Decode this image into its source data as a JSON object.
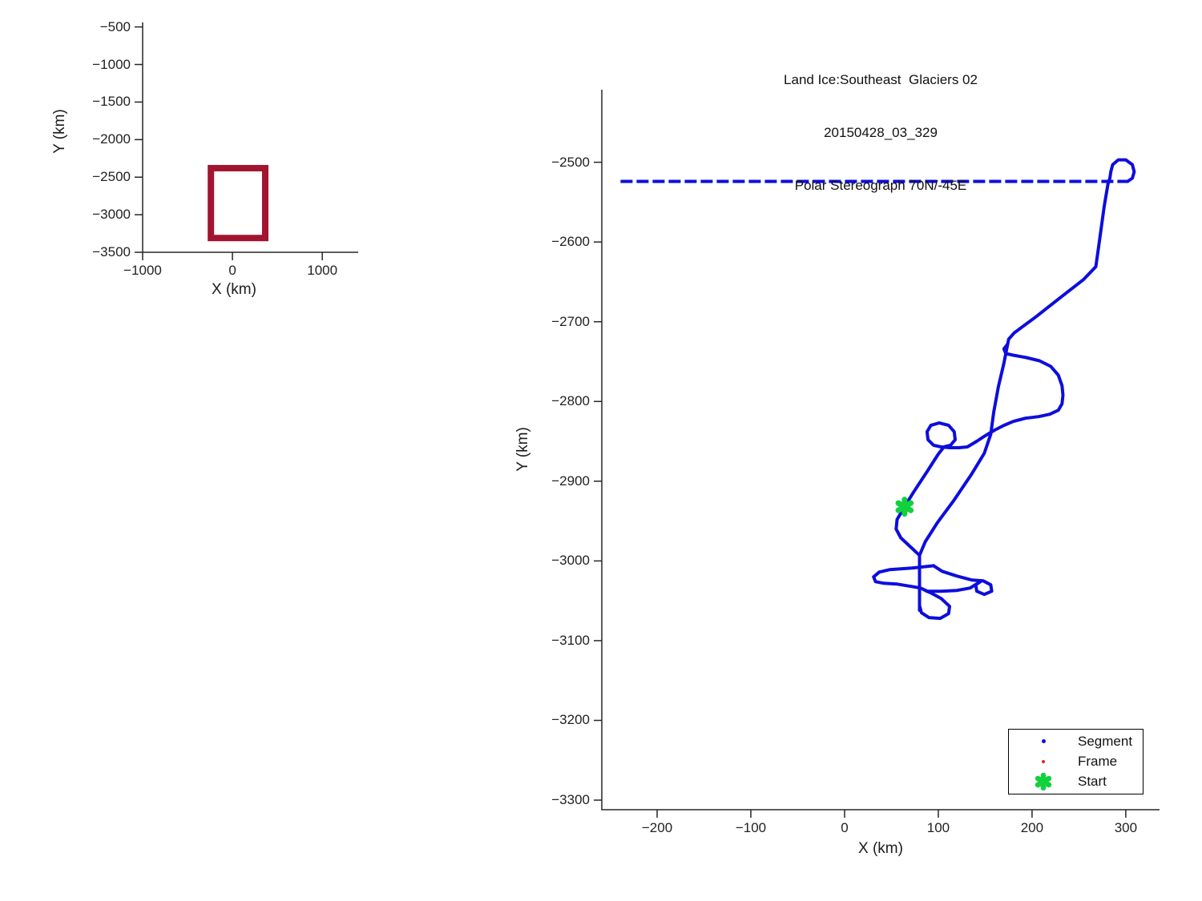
{
  "figure": {
    "background": "#ffffff"
  },
  "chart_data": [
    {
      "id": "overview",
      "type": "line",
      "description": "overview map with flight bounding box outline",
      "xlabel": "X (km)",
      "ylabel": "Y (km)",
      "x_ticks": [
        -1000,
        0,
        1000
      ],
      "y_ticks": [
        -500,
        -1000,
        -1500,
        -2000,
        -2500,
        -3000,
        -3500
      ],
      "xlim": [
        -1000,
        1400
      ],
      "ylim": [
        -3500,
        -440
      ],
      "grid": false,
      "rect": {
        "x_range": [
          -240,
          365
        ],
        "y_range": [
          -3310,
          -2380
        ],
        "color": "#A2142F",
        "line_width": 8
      }
    },
    {
      "id": "flight-track",
      "type": "line",
      "title_lines": [
        "Land Ice:Southeast  Glaciers 02",
        "20150428_03_329",
        "Polar Stereograph 70N/-45E"
      ],
      "xlabel": "X (km)",
      "ylabel": "Y (km)",
      "x_ticks": [
        -200,
        -100,
        0,
        100,
        200,
        300
      ],
      "y_ticks": [
        -2500,
        -2600,
        -2700,
        -2800,
        -2900,
        -3000,
        -3100,
        -3200,
        -3300
      ],
      "xlim": [
        -259,
        336
      ],
      "ylim": [
        -3312,
        -2409
      ],
      "grid": false,
      "path_color": "#0D0DDE",
      "line_width": 4,
      "dash_segments": [
        [
          [
            -239,
            -2524
          ],
          [
            302,
            -2524
          ]
        ]
      ],
      "solid_segments": [
        [
          [
            302,
            -2524
          ],
          [
            307,
            -2520
          ],
          [
            309,
            -2512
          ],
          [
            307,
            -2503
          ],
          [
            300,
            -2497
          ],
          [
            292,
            -2497
          ],
          [
            286,
            -2503
          ],
          [
            284,
            -2512
          ],
          [
            283,
            -2520
          ],
          [
            281,
            -2527
          ],
          [
            277,
            -2555
          ],
          [
            271,
            -2606
          ],
          [
            268,
            -2631
          ],
          [
            255,
            -2647
          ],
          [
            232,
            -2668
          ],
          [
            204,
            -2694
          ],
          [
            181,
            -2714
          ],
          [
            175,
            -2722
          ],
          [
            174,
            -2728
          ],
          [
            170,
            -2752
          ],
          [
            164,
            -2782
          ],
          [
            159,
            -2814
          ],
          [
            156,
            -2841
          ],
          [
            149,
            -2865
          ],
          [
            135,
            -2892
          ],
          [
            116,
            -2925
          ],
          [
            99,
            -2952
          ],
          [
            86,
            -2976
          ],
          [
            80,
            -2993
          ],
          [
            80,
            -3062
          ]
        ],
        [
          [
            80,
            -3056
          ],
          [
            82,
            -3065
          ],
          [
            90,
            -3071
          ],
          [
            102,
            -3072
          ],
          [
            111,
            -3066
          ],
          [
            112,
            -3057
          ],
          [
            103,
            -3047
          ],
          [
            92,
            -3040
          ],
          [
            86,
            -3037
          ]
        ],
        [
          [
            95,
            -3006
          ],
          [
            104,
            -3013
          ],
          [
            120,
            -3019
          ],
          [
            136,
            -3024
          ],
          [
            148,
            -3025
          ],
          [
            156,
            -3030
          ],
          [
            157,
            -3038
          ],
          [
            149,
            -3042
          ],
          [
            141,
            -3038
          ],
          [
            140,
            -3030
          ],
          [
            146,
            -3025
          ],
          [
            134,
            -3034
          ],
          [
            120,
            -3037
          ],
          [
            103,
            -3038
          ],
          [
            88,
            -3038
          ]
        ],
        [
          [
            95,
            -3006
          ],
          [
            72,
            -3009
          ],
          [
            48,
            -3011
          ],
          [
            37,
            -3014
          ],
          [
            31,
            -3020
          ],
          [
            33,
            -3026
          ],
          [
            42,
            -3028
          ],
          [
            56,
            -3029
          ],
          [
            71,
            -3032
          ],
          [
            81,
            -3034
          ],
          [
            90,
            -3039
          ]
        ],
        [
          [
            80,
            -2993
          ],
          [
            60,
            -2971
          ],
          [
            55,
            -2960
          ],
          [
            56,
            -2948
          ],
          [
            64,
            -2932
          ],
          [
            74,
            -2913
          ],
          [
            88,
            -2888
          ],
          [
            100,
            -2866
          ],
          [
            106,
            -2857
          ],
          [
            113,
            -2855
          ],
          [
            118,
            -2848
          ],
          [
            117,
            -2838
          ],
          [
            111,
            -2830
          ],
          [
            101,
            -2827
          ],
          [
            92,
            -2830
          ],
          [
            88,
            -2838
          ],
          [
            89,
            -2848
          ],
          [
            95,
            -2855
          ],
          [
            103,
            -2857
          ],
          [
            112,
            -2858
          ],
          [
            122,
            -2858
          ],
          [
            131,
            -2857
          ],
          [
            141,
            -2850
          ],
          [
            150,
            -2843
          ],
          [
            160,
            -2836
          ],
          [
            170,
            -2830
          ],
          [
            180,
            -2825
          ],
          [
            193,
            -2821
          ],
          [
            207,
            -2819
          ],
          [
            219,
            -2816
          ],
          [
            228,
            -2811
          ],
          [
            232,
            -2803
          ],
          [
            233,
            -2792
          ],
          [
            232,
            -2780
          ],
          [
            228,
            -2767
          ],
          [
            220,
            -2756
          ],
          [
            208,
            -2749
          ],
          [
            194,
            -2745
          ],
          [
            180,
            -2742
          ],
          [
            172,
            -2740
          ],
          [
            170,
            -2734
          ],
          [
            174,
            -2728
          ]
        ]
      ],
      "start": {
        "x": 64,
        "y": -2932,
        "color": "#12D13E"
      },
      "legend": {
        "position": "lower right",
        "items": [
          {
            "label": "Segment",
            "marker": "dot",
            "color": "#0D0DDE"
          },
          {
            "label": "Frame",
            "marker": "dot",
            "color": "#E32222"
          },
          {
            "label": "Start",
            "marker": "hexagram",
            "color": "#12D13E"
          }
        ]
      }
    }
  ]
}
